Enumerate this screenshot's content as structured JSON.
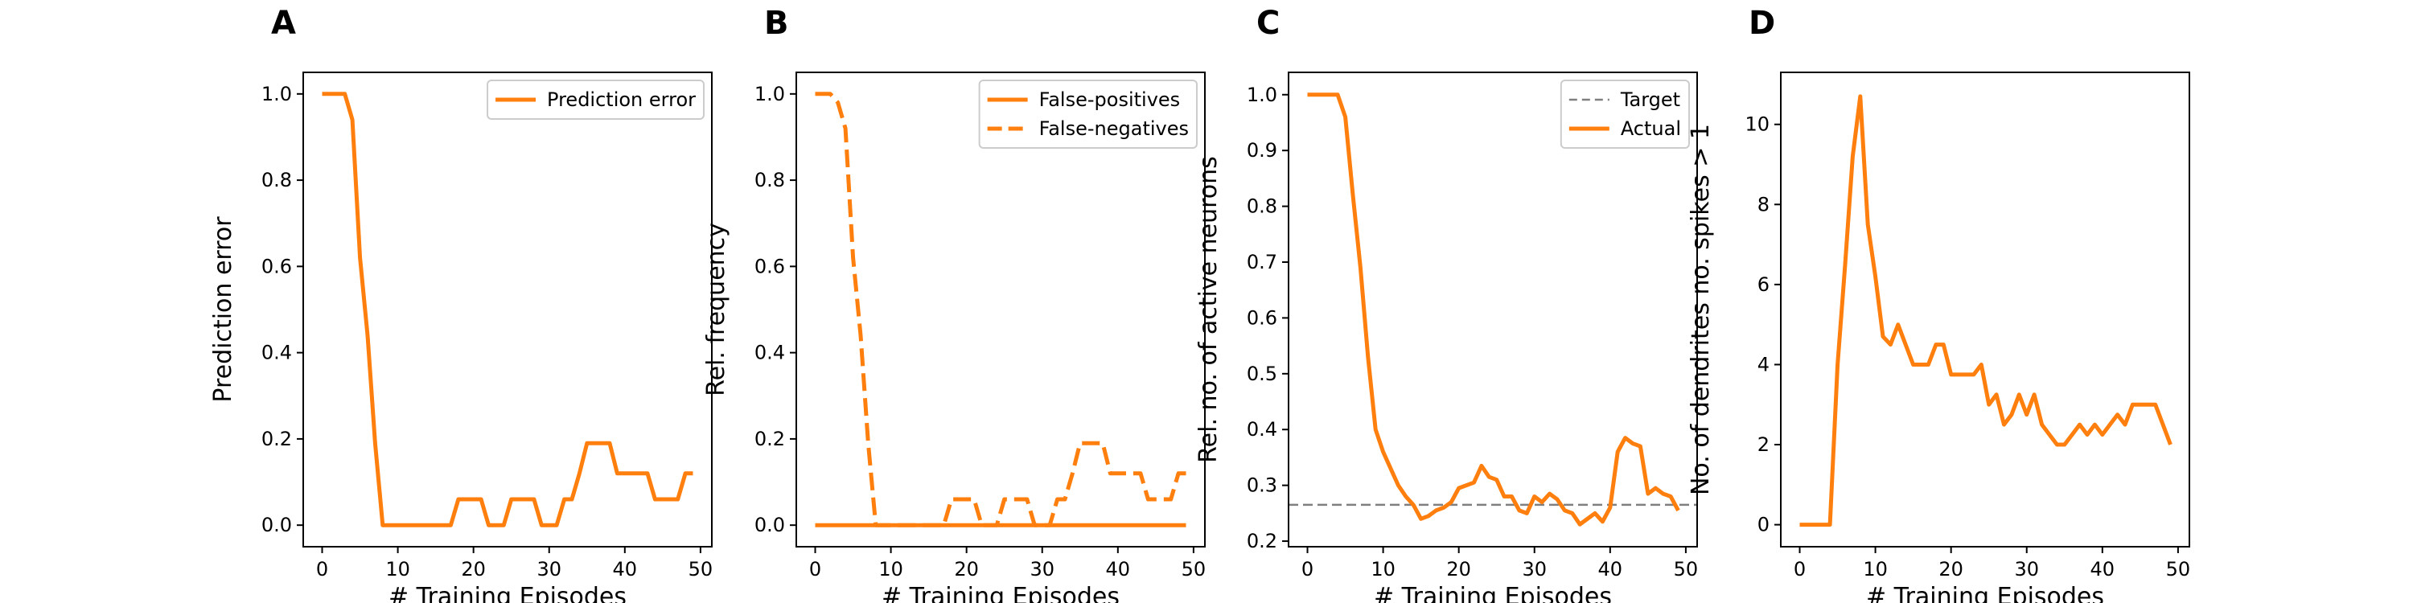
{
  "colors": {
    "series": "#ff7f0e",
    "target": "#7f7f7f",
    "axis": "#000000",
    "legend_border": "#cccccc"
  },
  "chart_data": [
    {
      "type": "line",
      "panel": "A",
      "xlabel": "# Training Episodes",
      "ylabel": "Prediction error",
      "xlim": [
        -2.5,
        51.5
      ],
      "ylim": [
        -0.05,
        1.05
      ],
      "xticks": [
        0,
        10,
        20,
        30,
        40,
        50
      ],
      "yticks": [
        0.0,
        0.2,
        0.4,
        0.6,
        0.8,
        1.0
      ],
      "ytick_labels": [
        "0.0",
        "0.2",
        "0.4",
        "0.6",
        "0.8",
        "1.0"
      ],
      "legend_position": "top-right",
      "series": [
        {
          "name": "Prediction error",
          "style": "solid",
          "x": [
            0,
            1,
            2,
            3,
            4,
            5,
            6,
            7,
            8,
            9,
            10,
            11,
            12,
            13,
            14,
            15,
            16,
            17,
            18,
            19,
            20,
            21,
            22,
            23,
            24,
            25,
            26,
            27,
            28,
            29,
            30,
            31,
            32,
            33,
            34,
            35,
            36,
            37,
            38,
            39,
            40,
            41,
            42,
            43,
            44,
            45,
            46,
            47,
            48,
            49
          ],
          "y": [
            1.0,
            1.0,
            1.0,
            1.0,
            0.94,
            0.62,
            0.44,
            0.19,
            0,
            0,
            0,
            0,
            0,
            0,
            0,
            0,
            0,
            0,
            0.06,
            0.06,
            0.06,
            0.06,
            0,
            0,
            0,
            0.06,
            0.06,
            0.06,
            0.06,
            0,
            0,
            0,
            0.06,
            0.06,
            0.12,
            0.19,
            0.19,
            0.19,
            0.19,
            0.12,
            0.12,
            0.12,
            0.12,
            0.12,
            0.06,
            0.06,
            0.06,
            0.06,
            0.12,
            0.12
          ]
        }
      ]
    },
    {
      "type": "line",
      "panel": "B",
      "xlabel": "# Training Episodes",
      "ylabel": "Rel. frequency",
      "xlim": [
        -2.5,
        51.5
      ],
      "ylim": [
        -0.05,
        1.05
      ],
      "xticks": [
        0,
        10,
        20,
        30,
        40,
        50
      ],
      "yticks": [
        0.0,
        0.2,
        0.4,
        0.6,
        0.8,
        1.0
      ],
      "ytick_labels": [
        "0.0",
        "0.2",
        "0.4",
        "0.6",
        "0.8",
        "1.0"
      ],
      "legend_position": "top-right",
      "series": [
        {
          "name": "False-positives",
          "style": "solid",
          "x": [
            0,
            1,
            2,
            3,
            4,
            5,
            6,
            7,
            8,
            9,
            10,
            11,
            12,
            13,
            14,
            15,
            16,
            17,
            18,
            19,
            20,
            21,
            22,
            23,
            24,
            25,
            26,
            27,
            28,
            29,
            30,
            31,
            32,
            33,
            34,
            35,
            36,
            37,
            38,
            39,
            40,
            41,
            42,
            43,
            44,
            45,
            46,
            47,
            48,
            49
          ],
          "y": [
            0,
            0,
            0,
            0,
            0,
            0,
            0,
            0,
            0,
            0,
            0,
            0,
            0,
            0,
            0,
            0,
            0,
            0,
            0,
            0,
            0,
            0,
            0,
            0,
            0,
            0,
            0,
            0,
            0,
            0,
            0,
            0,
            0,
            0,
            0,
            0,
            0,
            0,
            0,
            0,
            0,
            0,
            0,
            0,
            0,
            0,
            0,
            0,
            0,
            0
          ]
        },
        {
          "name": "False-negatives",
          "style": "dashed",
          "x": [
            0,
            1,
            2,
            3,
            4,
            5,
            6,
            7,
            8,
            9,
            10,
            11,
            12,
            13,
            14,
            15,
            16,
            17,
            18,
            19,
            20,
            21,
            22,
            23,
            24,
            25,
            26,
            27,
            28,
            29,
            30,
            31,
            32,
            33,
            34,
            35,
            36,
            37,
            38,
            39,
            40,
            41,
            42,
            43,
            44,
            45,
            46,
            47,
            48,
            49
          ],
          "y": [
            1.0,
            1.0,
            1.0,
            0.98,
            0.92,
            0.62,
            0.44,
            0.19,
            0,
            0,
            0,
            0,
            0,
            0,
            0,
            0,
            0,
            0,
            0.06,
            0.06,
            0.06,
            0.06,
            0,
            0,
            0,
            0.06,
            0.06,
            0.06,
            0.06,
            0,
            0,
            0,
            0.06,
            0.06,
            0.12,
            0.19,
            0.19,
            0.19,
            0.19,
            0.12,
            0.12,
            0.12,
            0.12,
            0.12,
            0.06,
            0.06,
            0.06,
            0.06,
            0.12,
            0.12
          ]
        }
      ]
    },
    {
      "type": "line",
      "panel": "C",
      "xlabel": "# Training Episodes",
      "ylabel": "Rel. no. of active neurons",
      "xlim": [
        -2.5,
        51.5
      ],
      "ylim": [
        0.19,
        1.04
      ],
      "xticks": [
        0,
        10,
        20,
        30,
        40,
        50
      ],
      "yticks": [
        0.2,
        0.3,
        0.4,
        0.5,
        0.6,
        0.7,
        0.8,
        0.9,
        1.0
      ],
      "ytick_labels": [
        "0.2",
        "0.3",
        "0.4",
        "0.5",
        "0.6",
        "0.7",
        "0.8",
        "0.9",
        "1.0"
      ],
      "legend_position": "top-right",
      "series": [
        {
          "name": "Target",
          "style": "dashed-gray",
          "x": [
            -2.5,
            51.5
          ],
          "y": [
            0.265,
            0.265
          ]
        },
        {
          "name": "Actual",
          "style": "solid",
          "x": [
            0,
            1,
            2,
            3,
            4,
            5,
            6,
            7,
            8,
            9,
            10,
            11,
            12,
            13,
            14,
            15,
            16,
            17,
            18,
            19,
            20,
            21,
            22,
            23,
            24,
            25,
            26,
            27,
            28,
            29,
            30,
            31,
            32,
            33,
            34,
            35,
            36,
            37,
            38,
            39,
            40,
            41,
            42,
            43,
            44,
            45,
            46,
            47,
            48,
            49
          ],
          "y": [
            1.0,
            1.0,
            1.0,
            1.0,
            1.0,
            0.96,
            0.82,
            0.69,
            0.53,
            0.4,
            0.36,
            0.33,
            0.3,
            0.28,
            0.265,
            0.24,
            0.245,
            0.255,
            0.26,
            0.27,
            0.295,
            0.3,
            0.305,
            0.335,
            0.315,
            0.31,
            0.28,
            0.28,
            0.255,
            0.25,
            0.28,
            0.27,
            0.285,
            0.275,
            0.255,
            0.25,
            0.23,
            0.24,
            0.25,
            0.235,
            0.26,
            0.36,
            0.385,
            0.375,
            0.37,
            0.285,
            0.295,
            0.285,
            0.28,
            0.255
          ]
        }
      ]
    },
    {
      "type": "line",
      "panel": "D",
      "xlabel": "# Training Episodes",
      "ylabel": "No. of dendrites no. spikes > 1",
      "xlim": [
        -2.5,
        51.5
      ],
      "ylim": [
        -0.55,
        11.3
      ],
      "xticks": [
        0,
        10,
        20,
        30,
        40,
        50
      ],
      "yticks": [
        0,
        2,
        4,
        6,
        8,
        10
      ],
      "ytick_labels": [
        "0",
        "2",
        "4",
        "6",
        "8",
        "10"
      ],
      "legend_position": "",
      "series": [
        {
          "name": "",
          "style": "solid",
          "x": [
            0,
            1,
            2,
            3,
            4,
            5,
            6,
            7,
            8,
            9,
            10,
            11,
            12,
            13,
            14,
            15,
            16,
            17,
            18,
            19,
            20,
            21,
            22,
            23,
            24,
            25,
            26,
            27,
            28,
            29,
            30,
            31,
            32,
            33,
            34,
            35,
            36,
            37,
            38,
            39,
            40,
            41,
            42,
            43,
            44,
            45,
            46,
            47,
            48,
            49
          ],
          "y": [
            0,
            0,
            0,
            0,
            0,
            4.0,
            6.5,
            9.2,
            10.7,
            7.5,
            6.2,
            4.7,
            4.5,
            5.0,
            4.5,
            4.0,
            4.0,
            4.0,
            4.5,
            4.5,
            3.75,
            3.75,
            3.75,
            3.75,
            4.0,
            3.0,
            3.25,
            2.5,
            2.75,
            3.25,
            2.75,
            3.25,
            2.5,
            2.25,
            2.0,
            2.0,
            2.25,
            2.5,
            2.25,
            2.5,
            2.25,
            2.5,
            2.75,
            2.5,
            3.0,
            3.0,
            3.0,
            3.0,
            2.5,
            2.0
          ]
        }
      ]
    }
  ]
}
